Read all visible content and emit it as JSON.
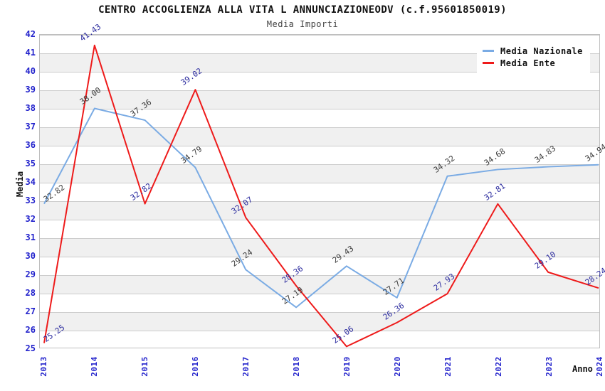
{
  "title": "CENTRO ACCOGLIENZA ALLA VITA L ANNUNCIAZIONEODV (c.f.95601850019)",
  "subtitle": "Media Importi",
  "axes": {
    "y_title": "Media",
    "x_title": "Anno",
    "tick_color": "#2222CC"
  },
  "colors": {
    "band_white": "#FFFFFF",
    "band_gray": "#F0F0F0",
    "gridline": "#CCCCCC",
    "plot_border": "#BFBFBF"
  },
  "chart_data": {
    "type": "line",
    "title": "CENTRO ACCOGLIENZA ALLA VITA L ANNUNCIAZIONEODV (c.f.95601850019)",
    "subtitle": "Media Importi",
    "xlabel": "Anno",
    "ylabel": "Media",
    "ylim": [
      25,
      42
    ],
    "y_tick_step": 1,
    "grid": "horizontal",
    "legend_position": "top-right",
    "categories": [
      "2013",
      "2014",
      "2015",
      "2016",
      "2017",
      "2018",
      "2019",
      "2020",
      "2021",
      "2022",
      "2023",
      "2024"
    ],
    "series": [
      {
        "name": "Media Nazionale",
        "color": "#7AABE4",
        "label_color": "#3A3A3A",
        "values": [
          32.82,
          38.0,
          37.36,
          34.79,
          29.24,
          27.19,
          29.43,
          27.71,
          34.32,
          34.68,
          34.83,
          34.94
        ],
        "labels": [
          "32.82",
          "38.00",
          "37.36",
          "34.79",
          "29.24",
          "27.19",
          "29.43",
          "27.71",
          "34.32",
          "34.68",
          "34.83",
          "34.94"
        ]
      },
      {
        "name": "Media Ente",
        "color": "#EE1A1A",
        "label_color": "#2A2A9E",
        "values": [
          25.25,
          41.43,
          32.82,
          39.02,
          32.07,
          28.36,
          25.06,
          26.36,
          27.93,
          32.81,
          29.1,
          28.24
        ],
        "labels": [
          "25.25",
          "41.43",
          "32.82",
          "39.02",
          "32.07",
          "28.36",
          "25.06",
          "26.36",
          "27.93",
          "32.81",
          "29.10",
          "28.24"
        ]
      }
    ]
  }
}
